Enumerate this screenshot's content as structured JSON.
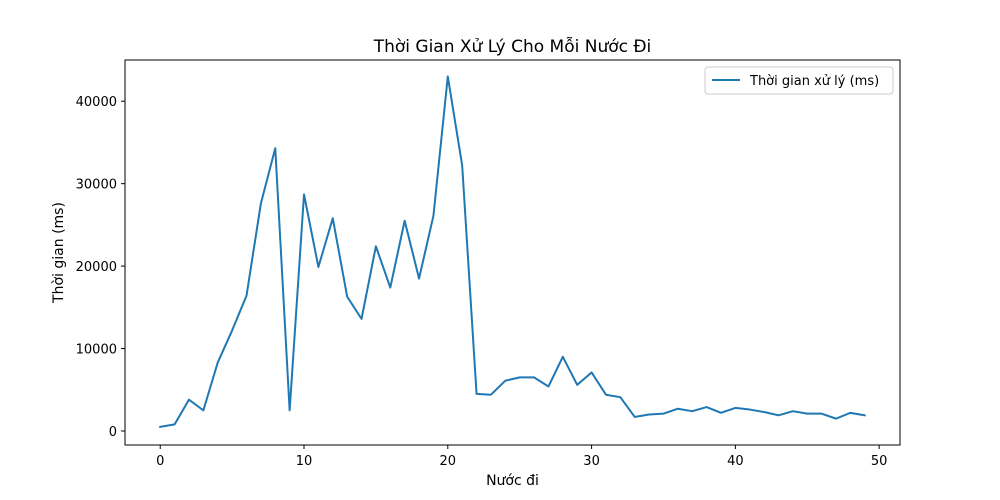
{
  "chart_data": {
    "type": "line",
    "title": "Thời Gian Xử Lý Cho Mỗi Nước Đi",
    "xlabel": "Nước đi",
    "ylabel": "Thời gian (ms)",
    "xlim": [
      -2.45,
      51.45
    ],
    "ylim": [
      -1700,
      45000
    ],
    "xticks": [
      0,
      10,
      20,
      30,
      40,
      50
    ],
    "yticks": [
      0,
      10000,
      20000,
      30000,
      40000
    ],
    "grid": false,
    "legend": "top-right",
    "series": [
      {
        "name": "Thời gian xử lý (ms)",
        "color": "#1f77b4",
        "x": [
          0,
          1,
          2,
          3,
          4,
          5,
          6,
          7,
          8,
          9,
          10,
          11,
          12,
          13,
          14,
          15,
          16,
          17,
          18,
          19,
          20,
          21,
          22,
          23,
          24,
          25,
          26,
          27,
          28,
          29,
          30,
          31,
          32,
          33,
          34,
          35,
          36,
          37,
          38,
          39,
          40,
          41,
          42,
          43,
          44,
          45,
          46,
          47,
          48,
          49
        ],
        "values": [
          500,
          800,
          3800,
          2500,
          8300,
          12200,
          16400,
          27600,
          34300,
          2500,
          28700,
          19900,
          25800,
          16300,
          13600,
          22400,
          17400,
          25500,
          18500,
          26100,
          43000,
          32200,
          4500,
          4400,
          6100,
          6500,
          6500,
          5400,
          9000,
          5600,
          7100,
          4400,
          4100,
          1700,
          2000,
          2100,
          2700,
          2400,
          2900,
          2200,
          2800,
          2600,
          2300,
          1900,
          2400,
          2100,
          2100,
          1500,
          2200,
          1900
        ]
      }
    ]
  }
}
